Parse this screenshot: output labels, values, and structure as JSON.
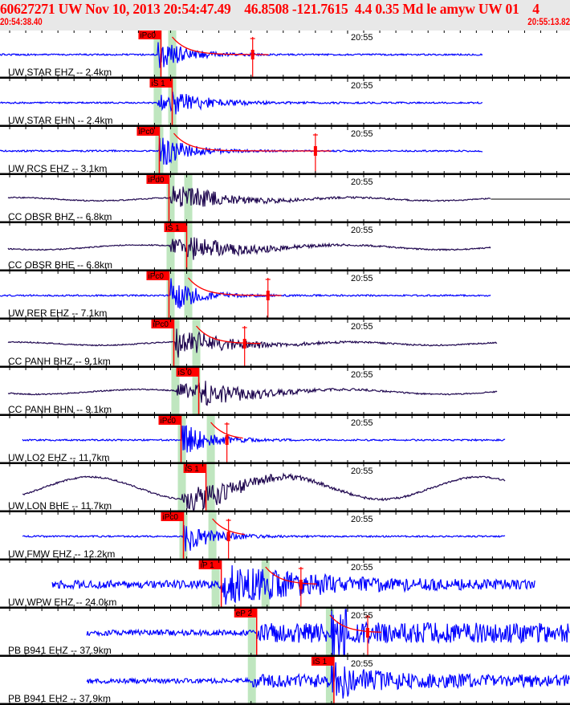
{
  "header": {
    "title": "60627271 UW Nov 10, 2013 20:54:47.49    46.8508 -121.7615  4.4 0.35 Md le amyw UW 01    4",
    "window_start": "20:54:38.40",
    "window_end": "20:55:13.82"
  },
  "time_axis": {
    "start_seconds": 38.4,
    "end_seconds": 73.82,
    "minute_label": "20:55",
    "minute_mark_seconds": 60
  },
  "colors": {
    "pick": "#ff0000",
    "window_band": "#bfe6bf",
    "short_period": "#0000ff",
    "broadband": "#200850",
    "title": "#ff0000"
  },
  "panels": [
    {
      "label": "UW STAR EHZ -- 2.4km",
      "color": "short_period",
      "pick": {
        "label": "iPc0",
        "time": 48.4
      },
      "bands": [
        48.2,
        49.1
      ],
      "marker": 54.1,
      "trace": [
        38.4,
        68.4
      ],
      "kind": "p"
    },
    {
      "label": "UW STAR EHN -- 2.4km",
      "color": "short_period",
      "pick": {
        "label": "iS 1",
        "time": 49.1
      },
      "bands": [
        48.2,
        49.1
      ],
      "marker": null,
      "trace": [
        38.4,
        68.4
      ],
      "kind": "s"
    },
    {
      "label": "UW RCS EHZ -- 3.1km",
      "color": "short_period",
      "pick": {
        "label": "iPc0",
        "time": 48.3
      },
      "bands": [
        48.3,
        49.2
      ],
      "marker": 58.0,
      "trace": [
        38.4,
        68.4
      ],
      "kind": "p"
    },
    {
      "label": "CC OBSR BHZ -- 6.8km",
      "color": "broadband",
      "pick": {
        "label": "iPd0",
        "time": 48.9
      },
      "bands": [
        49.0,
        50.1
      ],
      "marker": null,
      "trace": [
        38.9,
        68.9
      ],
      "kind": "bb",
      "tail": true
    },
    {
      "label": "CC OBSR BHE -- 6.8km",
      "color": "broadband",
      "pick": {
        "label": "iS 1",
        "time": 50.0
      },
      "bands": [
        49.0,
        50.1
      ],
      "marker": null,
      "trace": [
        38.9,
        68.9
      ],
      "kind": "bbs"
    },
    {
      "label": "UW RER EHZ -- 7.1km",
      "color": "short_period",
      "pick": {
        "label": "iPc0",
        "time": 48.9
      },
      "bands": [
        49.0,
        50.1
      ],
      "marker": 55.05,
      "trace": [
        38.4,
        68.9
      ],
      "kind": "p"
    },
    {
      "label": "CC PANH BHZ -- 9.1km",
      "color": "broadband",
      "pick": {
        "label": "iPc0",
        "time": 49.2
      },
      "bands": [
        49.3,
        50.6
      ],
      "marker": 53.6,
      "trace": [
        38.9,
        69.3
      ],
      "kind": "bb"
    },
    {
      "label": "CC PANH BHN -- 9.1km",
      "color": "broadband",
      "pick": {
        "label": "iS 0",
        "time": 50.75
      },
      "bands": [
        49.3,
        50.6
      ],
      "marker": null,
      "trace": [
        38.9,
        69.3
      ],
      "kind": "bbs"
    },
    {
      "label": "UW LO2 EHZ -- 11.7km",
      "color": "short_period",
      "pick": {
        "label": "iPc0",
        "time": 49.65
      },
      "bands": [
        49.7,
        51.5
      ],
      "marker": 52.5,
      "trace": [
        39.8,
        69.8
      ],
      "kind": "p"
    },
    {
      "label": "UW LON BHE -- 11.7km",
      "color": "broadband",
      "pick": {
        "label": "iS 1",
        "time": 51.2
      },
      "bands": [
        49.7,
        51.5
      ],
      "marker": null,
      "trace": [
        39.8,
        69.8
      ],
      "kind": "sine"
    },
    {
      "label": "UW FMW EHZ -- 12.2km",
      "color": "short_period",
      "pick": {
        "label": "iPc0",
        "time": 49.8
      },
      "bands": [
        49.8,
        51.6
      ],
      "marker": 52.6,
      "trace": [
        39.8,
        69.8
      ],
      "kind": "p"
    },
    {
      "label": "UW WPW EHZ -- 24.0km",
      "color": "short_period",
      "pick": {
        "label": "iP 1",
        "time": 52.15
      },
      "bands": [
        51.8,
        54.9
      ],
      "marker": 57.1,
      "trace": [
        41.65,
        71.65
      ],
      "kind": "noisy"
    },
    {
      "label": "PB B941 EHZ -- 37.9km",
      "color": "short_period",
      "pick": {
        "label": "eP 2",
        "time": 54.35
      },
      "bands": [
        54.05,
        58.9
      ],
      "marker": 61.25,
      "trace": [
        43.8,
        73.8
      ],
      "kind": "far"
    },
    {
      "label": "PB B941 EH2 -- 37.9km",
      "color": "short_period",
      "pick": {
        "label": "iS 1",
        "time": 59.15
      },
      "bands": [
        54.05,
        58.9
      ],
      "marker": null,
      "trace": [
        43.8,
        73.8
      ],
      "kind": "fars"
    }
  ]
}
